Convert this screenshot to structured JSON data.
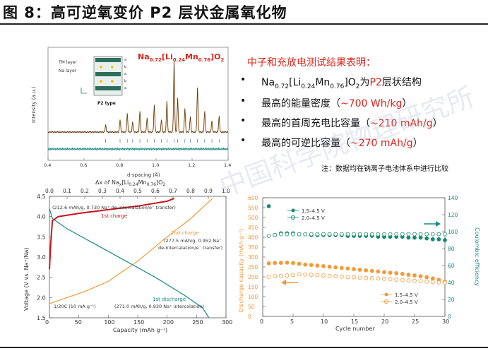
{
  "figure_title": "图 8：高可逆氧变价 P2 层状金属氧化物",
  "summary": {
    "heading": "中子和充放电测试结果表明：",
    "bullet1_prefix": "Na",
    "bullet1_red": "P2",
    "bullet1_suffix": "层状结构",
    "bullet2_text": "最高的能量密度（",
    "bullet2_red": "~700 Wh/kg",
    "bullet2_close": "）",
    "bullet3_text": "最高的首周充电比容量（",
    "bullet3_red": "~210 mAh/g",
    "bullet3_close": "）",
    "bullet4_text": "最高的可逆比容量（",
    "bullet4_red": "~270 mAh/g",
    "bullet4_close": "）"
  },
  "note": "注：数据均在钠离子电池体系中进行比较",
  "watermark": "中国科学院物理研究所",
  "colors": {
    "red": "#d9261c",
    "orange": "#f39a36",
    "teal": "#1a8a86",
    "green": "#1a8a6e",
    "charge_red": "#c8161e"
  },
  "chart_data": [
    {
      "type": "line",
      "title": "Na0.72[Li0.24Mn0.76]O2",
      "xlabel": "d-spacing (Å)",
      "ylabel": "Intensity (a.u.)",
      "xlim": [
        0.4,
        1.4
      ],
      "xticks": [
        "0.4",
        "0.6",
        "0.8",
        "1.0",
        "1.2",
        "1.4"
      ],
      "inset": {
        "labels": [
          "TM layer",
          "Na layer",
          "P2 type"
        ],
        "stack": [
          "a",
          "b",
          "a",
          "b",
          "a"
        ]
      },
      "peaks": [
        {
          "x": 0.72,
          "y": 0.1
        },
        {
          "x": 0.8,
          "y": 0.18
        },
        {
          "x": 0.84,
          "y": 0.26
        },
        {
          "x": 0.87,
          "y": 0.14
        },
        {
          "x": 0.91,
          "y": 0.3
        },
        {
          "x": 0.95,
          "y": 0.2
        },
        {
          "x": 0.99,
          "y": 0.38
        },
        {
          "x": 1.03,
          "y": 0.18
        },
        {
          "x": 1.06,
          "y": 0.44
        },
        {
          "x": 1.1,
          "y": 1.0
        },
        {
          "x": 1.12,
          "y": 0.48
        },
        {
          "x": 1.16,
          "y": 0.34
        },
        {
          "x": 1.19,
          "y": 0.22
        },
        {
          "x": 1.23,
          "y": 0.62
        },
        {
          "x": 1.27,
          "y": 0.3
        },
        {
          "x": 1.31,
          "y": 0.16
        },
        {
          "x": 1.35,
          "y": 0.22
        }
      ]
    },
    {
      "type": "line",
      "xlabel": "Capacity (mAh g⁻¹)",
      "ylabel": "Voltage (V vs. Na⁺/Na)",
      "x2label": "Δx of Naₓ[Li0.24Mn0.76]O2",
      "xlim": [
        0,
        300
      ],
      "ylim": [
        1.5,
        4.5
      ],
      "xticks": [
        "0",
        "50",
        "100",
        "150",
        "200",
        "250",
        "300"
      ],
      "yticks": [
        "1.5",
        "2.0",
        "2.5",
        "3.0",
        "3.5",
        "4.0",
        "4.5"
      ],
      "x2ticks": [
        "0.0",
        "0.1",
        "0.2",
        "0.3",
        "0.4",
        "0.5",
        "0.6",
        "0.7",
        "0.8",
        "0.9",
        "1.0"
      ],
      "annotations": {
        "charge1": "1st charge",
        "charge1_note": "(212.6 mAh/g, 0.730 Na⁺ de-intercalation/e⁻ transfer)",
        "charge2": "2nd charge",
        "charge2_note_1": "(277.5 mAh/g, 0.952 Na⁺",
        "charge2_note_2": "de-intercalation/e⁻ transfer)",
        "discharge1": "1st discharge",
        "discharge1_note": "(271.0 mAh/g, 0.930 Na⁺ intercalation)",
        "rate": "1/20C (10 mA g⁻¹)"
      },
      "series": [
        {
          "name": "1st charge",
          "points": [
            [
              0,
              2.7
            ],
            [
              2,
              3.3
            ],
            [
              5,
              3.9
            ],
            [
              15,
              4.0
            ],
            [
              50,
              4.08
            ],
            [
              100,
              4.17
            ],
            [
              150,
              4.26
            ],
            [
              200,
              4.38
            ],
            [
              212,
              4.45
            ]
          ]
        },
        {
          "name": "2nd charge",
          "points": [
            [
              0,
              1.85
            ],
            [
              20,
              1.95
            ],
            [
              60,
              2.15
            ],
            [
              100,
              2.4
            ],
            [
              150,
              2.9
            ],
            [
              200,
              3.5
            ],
            [
              240,
              3.95
            ],
            [
              277,
              4.45
            ]
          ]
        },
        {
          "name": "1st discharge",
          "points": [
            [
              0,
              4.2
            ],
            [
              5,
              3.95
            ],
            [
              30,
              3.7
            ],
            [
              80,
              3.3
            ],
            [
              130,
              2.9
            ],
            [
              180,
              2.5
            ],
            [
              230,
              2.05
            ],
            [
              260,
              1.75
            ],
            [
              271,
              1.5
            ]
          ]
        }
      ]
    },
    {
      "type": "scatter",
      "xlabel": "Cycle number",
      "ylabel": "Discharge capacity (mAh g⁻¹)",
      "y2label": "Coulombic efficiency",
      "xlim": [
        0,
        30
      ],
      "ylim": [
        0,
        600
      ],
      "y2lim": [
        0,
        140
      ],
      "xticks": [
        "0",
        "5",
        "10",
        "15",
        "20",
        "25",
        "30"
      ],
      "yticks": [
        "0",
        "50",
        "100",
        "150",
        "200",
        "250",
        "300",
        "350",
        "400",
        "450",
        "500",
        "550",
        "600"
      ],
      "y2ticks": [
        "0",
        "20",
        "40",
        "60",
        "80",
        "100",
        "120",
        "140"
      ],
      "legend_top": [
        "1.5–4.5 V",
        "2.0–4.5 V"
      ],
      "legend_bottom": [
        "1.5–4.5 V",
        "2.0–4.5 V"
      ],
      "series": [
        {
          "name": "1.5–4.5 V",
          "values": [
            268,
            270,
            271,
            272,
            270,
            266,
            262,
            260,
            257,
            254,
            251,
            248,
            245,
            242,
            239,
            236,
            233,
            230,
            227,
            224,
            221,
            218,
            215,
            211,
            207,
            203,
            198,
            192,
            185,
            175
          ]
        },
        {
          "name": "2.0–4.5 V",
          "values": [
            200,
            203,
            205,
            207,
            210,
            213,
            212,
            211,
            209,
            207,
            205,
            203,
            201,
            199,
            198,
            196,
            194,
            193,
            192,
            190,
            188,
            186,
            184,
            182,
            180,
            178,
            176,
            174,
            172,
            170
          ]
        },
        {
          "name": "1.5–4.5 V CE",
          "values": [
            130,
            96,
            98,
            98,
            98,
            97,
            97,
            96,
            96,
            96,
            96,
            96,
            96,
            95,
            95,
            95,
            95,
            95,
            94,
            94,
            94,
            94,
            94,
            93,
            93,
            93,
            92,
            91,
            91,
            90
          ]
        },
        {
          "name": "2.0–4.5 V CE",
          "values": [
            95,
            96,
            97,
            97,
            97,
            97,
            97,
            97,
            97,
            97,
            97,
            97,
            97,
            97,
            97,
            97,
            97,
            97,
            97,
            97,
            97,
            97,
            97,
            97,
            97,
            97,
            97,
            97,
            97,
            97
          ]
        }
      ]
    }
  ]
}
